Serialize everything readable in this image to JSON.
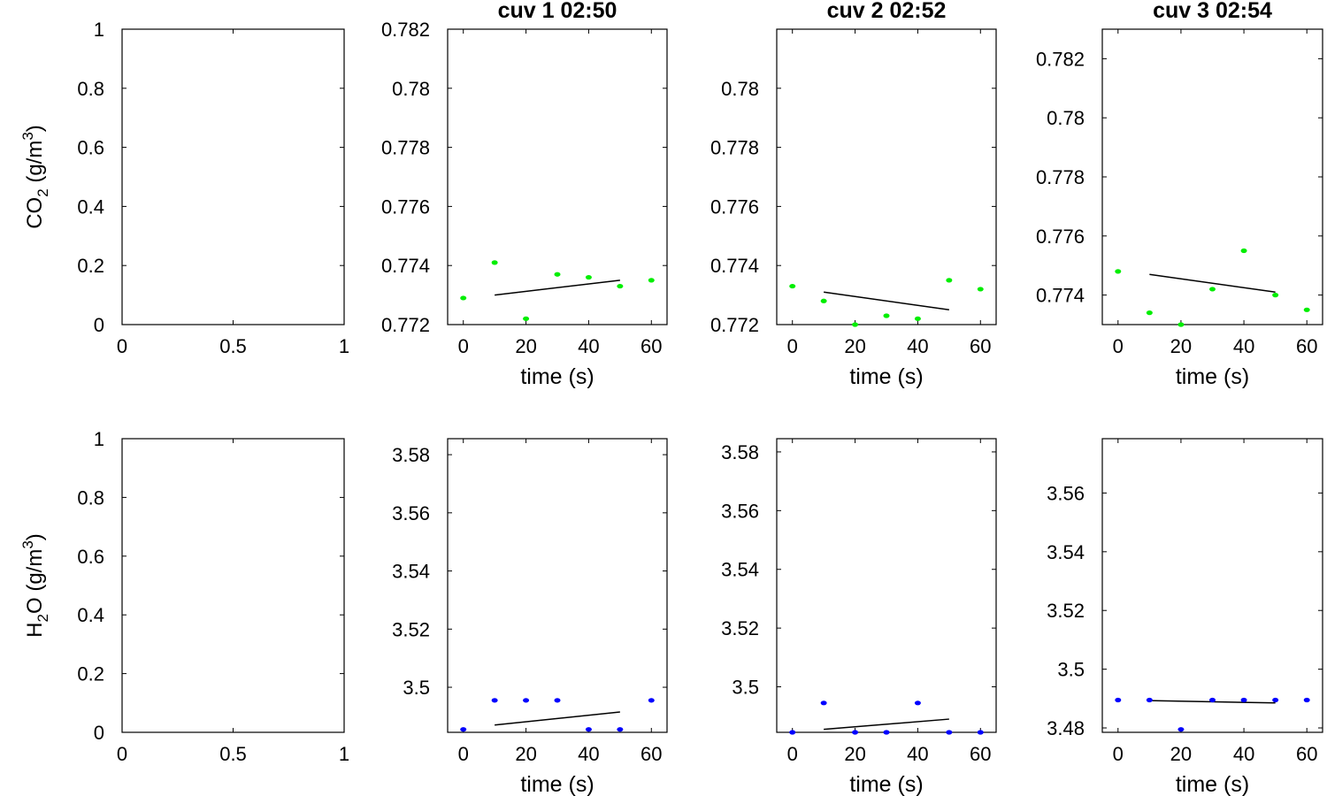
{
  "figure": {
    "co2_ylabel_main": "CO",
    "co2_ylabel_sub": "2",
    "co2_ylabel_unit": " (g/m",
    "co2_ylabel_sup": "3",
    "co2_ylabel_close": ")",
    "h2o_ylabel_main": "H",
    "h2o_ylabel_sub": "2",
    "h2o_ylabel_unit": "O (g/m",
    "h2o_ylabel_sup": "3",
    "h2o_ylabel_close": ")"
  },
  "colors": {
    "co2_points": "#00ee00",
    "h2o_points": "#0000ff",
    "fit_line": "#000000",
    "axes": "#000000"
  },
  "chart_data": [
    {
      "type": "scatter",
      "row": "co2",
      "title": "",
      "xlabel": "",
      "xlim": [
        0,
        1
      ],
      "ylim": [
        0,
        1
      ],
      "xticks": [
        "0",
        "0.5",
        "1"
      ],
      "yticks": [
        "0",
        "0.2",
        "0.4",
        "0.6",
        "0.8",
        "1"
      ],
      "series": []
    },
    {
      "type": "scatter",
      "row": "co2",
      "title": "cuv 1 02:50",
      "xlabel": "time (s)",
      "xlim": [
        -5,
        65
      ],
      "ylim": [
        0.772,
        0.782
      ],
      "xticks": [
        "0",
        "20",
        "40",
        "60"
      ],
      "yticks": [
        "0.772",
        "0.774",
        "0.776",
        "0.778",
        "0.78",
        "0.782"
      ],
      "series": [
        {
          "color": "#00ee00",
          "x": [
            0,
            10,
            20,
            30,
            40,
            50,
            60
          ],
          "y": [
            0.7729,
            0.7741,
            0.7722,
            0.7737,
            0.7736,
            0.7733,
            0.7735
          ]
        }
      ],
      "fit": {
        "x": [
          10,
          50
        ],
        "y": [
          0.773,
          0.7735
        ]
      }
    },
    {
      "type": "scatter",
      "row": "co2",
      "title": "cuv 2 02:52",
      "xlabel": "time (s)",
      "xlim": [
        -5,
        65
      ],
      "ylim": [
        0.772,
        0.782
      ],
      "xticks": [
        "0",
        "20",
        "40",
        "60"
      ],
      "yticks": [
        "0.772",
        "0.774",
        "0.776",
        "0.778",
        "0.78"
      ],
      "series": [
        {
          "color": "#00ee00",
          "x": [
            0,
            10,
            20,
            30,
            40,
            50,
            60
          ],
          "y": [
            0.7733,
            0.7728,
            0.772,
            0.7723,
            0.7722,
            0.7735,
            0.7732
          ]
        }
      ],
      "fit": {
        "x": [
          10,
          50
        ],
        "y": [
          0.7731,
          0.7725
        ]
      }
    },
    {
      "type": "scatter",
      "row": "co2",
      "title": "cuv 3 02:54",
      "xlabel": "time (s)",
      "xlim": [
        -5,
        65
      ],
      "ylim": [
        0.773,
        0.783
      ],
      "xticks": [
        "0",
        "20",
        "40",
        "60"
      ],
      "yticks": [
        "0.774",
        "0.776",
        "0.778",
        "0.78",
        "0.782"
      ],
      "series": [
        {
          "color": "#00ee00",
          "x": [
            0,
            10,
            20,
            30,
            40,
            50,
            60
          ],
          "y": [
            0.7748,
            0.7734,
            0.773,
            0.7742,
            0.7755,
            0.774,
            0.7735
          ]
        }
      ],
      "fit": {
        "x": [
          10,
          50
        ],
        "y": [
          0.7747,
          0.7741
        ]
      }
    },
    {
      "type": "scatter",
      "row": "h2o",
      "title": "",
      "xlabel": "",
      "xlim": [
        0,
        1
      ],
      "ylim": [
        0,
        1
      ],
      "xticks": [
        "0",
        "0.5",
        "1"
      ],
      "yticks": [
        "0",
        "0.2",
        "0.4",
        "0.6",
        "0.8",
        "1"
      ],
      "series": []
    },
    {
      "type": "scatter",
      "row": "h2o",
      "title": "",
      "xlabel": "time (s)",
      "xlim": [
        -5,
        65
      ],
      "ylim": [
        3.4845,
        3.5855
      ],
      "xticks": [
        "0",
        "20",
        "40",
        "60"
      ],
      "yticks": [
        "3.5",
        "3.52",
        "3.54",
        "3.56",
        "3.58"
      ],
      "series": [
        {
          "color": "#0000ff",
          "x": [
            0,
            10,
            20,
            30,
            40,
            50,
            60
          ],
          "y": [
            3.4855,
            3.4955,
            3.4955,
            3.4955,
            3.4855,
            3.4855,
            3.4955
          ]
        }
      ],
      "fit": {
        "x": [
          10,
          50
        ],
        "y": [
          3.487,
          3.4915
        ]
      }
    },
    {
      "type": "scatter",
      "row": "h2o",
      "title": "",
      "xlabel": "time (s)",
      "xlim": [
        -5,
        65
      ],
      "ylim": [
        3.4845,
        3.5845
      ],
      "xticks": [
        "0",
        "20",
        "40",
        "60"
      ],
      "yticks": [
        "3.5",
        "3.52",
        "3.54",
        "3.56",
        "3.58"
      ],
      "series": [
        {
          "color": "#0000ff",
          "x": [
            0,
            10,
            20,
            30,
            40,
            50,
            60
          ],
          "y": [
            3.4845,
            3.4945,
            3.4845,
            3.4845,
            3.4945,
            3.4845,
            3.4845
          ]
        }
      ],
      "fit": {
        "x": [
          10,
          50
        ],
        "y": [
          3.4855,
          3.489
        ]
      }
    },
    {
      "type": "scatter",
      "row": "h2o",
      "title": "",
      "xlabel": "time (s)",
      "xlim": [
        -5,
        65
      ],
      "ylim": [
        3.4785,
        3.5785
      ],
      "xticks": [
        "0",
        "20",
        "40",
        "60"
      ],
      "yticks": [
        "3.48",
        "3.5",
        "3.52",
        "3.54",
        "3.56"
      ],
      "series": [
        {
          "color": "#0000ff",
          "x": [
            0,
            10,
            20,
            30,
            40,
            50,
            60
          ],
          "y": [
            3.4895,
            3.4895,
            3.4795,
            3.4895,
            3.4895,
            3.4895,
            3.4895
          ]
        }
      ],
      "fit": {
        "x": [
          10,
          50
        ],
        "y": [
          3.4893,
          3.4885
        ]
      }
    }
  ]
}
